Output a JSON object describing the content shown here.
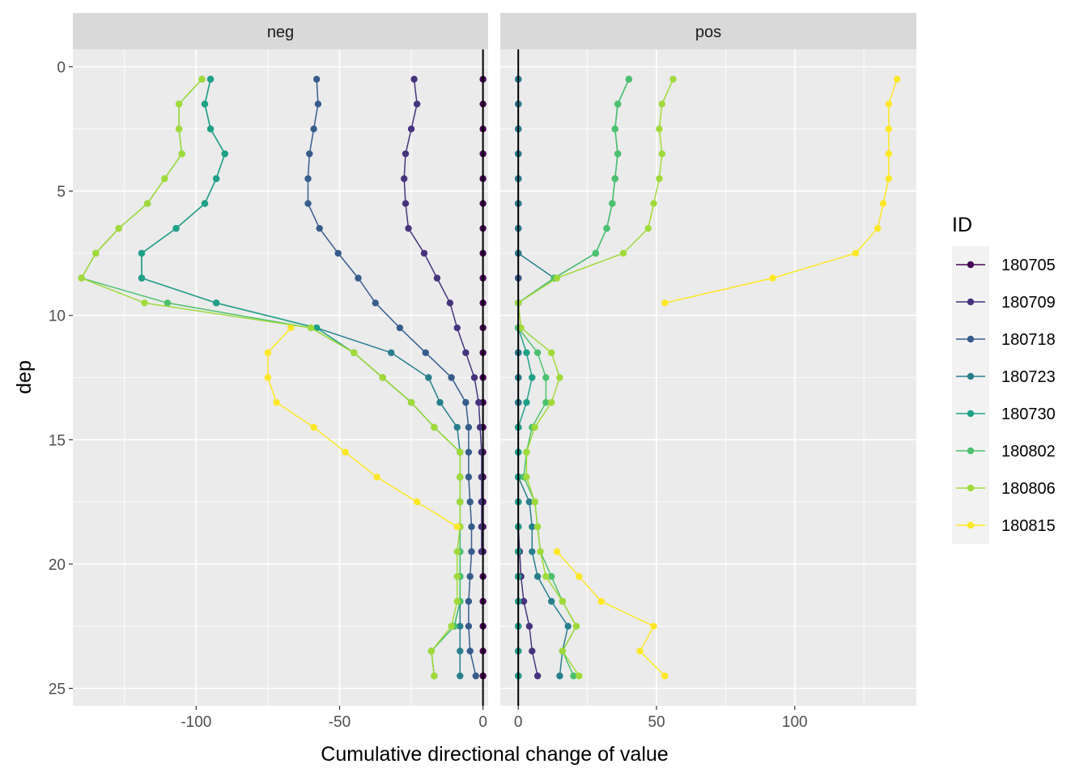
{
  "chart_data": {
    "type": "line",
    "facets": [
      "neg",
      "pos"
    ],
    "xlabel": "Cumulative directional change of value",
    "ylabel": "dep",
    "x_ticks": {
      "neg": [
        -100,
        -50,
        0
      ],
      "pos": [
        0,
        50,
        100
      ]
    },
    "y_ticks": [
      0,
      5,
      10,
      15,
      20,
      25
    ],
    "ylim": [
      -0.7,
      25.7
    ],
    "y_reversed": true,
    "xlim": {
      "neg": [
        -143,
        1.8
      ],
      "pos": [
        -6.5,
        144
      ]
    },
    "grid": true,
    "reference_line_x": 0,
    "legend": {
      "title": "ID",
      "position": "right"
    },
    "depths": [
      0.5,
      1.5,
      2.5,
      3.5,
      4.5,
      5.5,
      6.5,
      7.5,
      8.5,
      9.5,
      10.5,
      11.5,
      12.5,
      13.5,
      14.5,
      15.5,
      16.5,
      17.5,
      18.5,
      19.5,
      20.5,
      21.5,
      22.5,
      23.5,
      24.5
    ],
    "series": [
      {
        "name": "180705",
        "color": "#440154",
        "neg": [
          0,
          0,
          0,
          0,
          0,
          0,
          0,
          0,
          0,
          0,
          0,
          0,
          0,
          0,
          0,
          0,
          0,
          0,
          0,
          0,
          0,
          0,
          0,
          0,
          0
        ],
        "pos": [
          0,
          0,
          0,
          0,
          0,
          0,
          0,
          0,
          0,
          0,
          0,
          0,
          0,
          0,
          0,
          0,
          0,
          0,
          0,
          0,
          0,
          0,
          0,
          0,
          0
        ]
      },
      {
        "name": "180709",
        "color": "#46337E",
        "neg": [
          -24,
          -23,
          -25,
          -27,
          -27.5,
          -27,
          -26,
          -20.5,
          -16,
          -11.5,
          -9,
          -6,
          -3,
          -1.5,
          -1,
          -0.5,
          -0.5,
          -0.5,
          -0.5,
          -0.5,
          null,
          null,
          null,
          null,
          null
        ],
        "pos": [
          0,
          0,
          0,
          0,
          0,
          0,
          0,
          0,
          0,
          0,
          0,
          0,
          0,
          0,
          0,
          0,
          0,
          0,
          0,
          0.5,
          1,
          2,
          4,
          5,
          7
        ]
      },
      {
        "name": "180718",
        "color": "#365C8D",
        "neg": [
          -58,
          -57.5,
          -59,
          -60.5,
          -61,
          -61,
          -57,
          -50.5,
          -43.5,
          -37.5,
          -29,
          -20,
          -11,
          -6,
          -5,
          -5,
          -5,
          -4.5,
          -4,
          -4,
          -4.5,
          -5,
          -5,
          -4.5,
          -2.5
        ],
        "pos": [
          0,
          0,
          0,
          0,
          0,
          0,
          0,
          0,
          0,
          0,
          0,
          0,
          0,
          0,
          0,
          0,
          0,
          0,
          0,
          0,
          0,
          0,
          0,
          0,
          0
        ]
      },
      {
        "name": "180723",
        "color": "#277F8E",
        "neg": [
          -95,
          -97,
          -95,
          -90,
          -93,
          -97,
          -107,
          -119,
          -119,
          -93,
          -58,
          -32,
          -19,
          -15,
          -9,
          -8,
          -8,
          -8,
          -8,
          -8,
          -8,
          -8,
          -8,
          -8,
          -8
        ],
        "pos": [
          0,
          0,
          0,
          0,
          0,
          0,
          0,
          0,
          13,
          0,
          0,
          0,
          0,
          0,
          0,
          0,
          0,
          4,
          5,
          5,
          7,
          12,
          18,
          16,
          15
        ]
      },
      {
        "name": "180730",
        "color": "#1FA187",
        "neg": [
          -95,
          -97,
          -95,
          -90,
          -93,
          -97,
          -107,
          -119,
          -119,
          -93,
          -58,
          -45,
          -35,
          -25,
          -17,
          -8,
          -8,
          -8,
          -8,
          -8,
          -8,
          -8,
          -10,
          -18,
          -17
        ],
        "pos": [
          40,
          36,
          35,
          36,
          35,
          34,
          32,
          28,
          13,
          0,
          0,
          3,
          5,
          3,
          0,
          0,
          0,
          0,
          0,
          0,
          0,
          0,
          0,
          0,
          0
        ]
      },
      {
        "name": "180802",
        "color": "#4AC16D",
        "neg": [
          -98,
          -106,
          -106,
          -105,
          -111,
          -117,
          -127,
          -135,
          -140,
          -110,
          -60,
          -45,
          -35,
          -25,
          -17,
          -8,
          -8,
          -8,
          -8,
          -8,
          -8,
          -8,
          -10,
          -18,
          -17
        ],
        "pos": [
          40,
          36,
          35,
          36,
          35,
          34,
          32,
          28,
          13,
          0,
          0,
          7,
          10,
          10,
          5,
          3,
          2,
          6,
          7,
          8,
          12,
          16,
          21,
          16,
          20
        ]
      },
      {
        "name": "180806",
        "color": "#A0DA39",
        "neg": [
          -98,
          -106,
          -106,
          -105,
          -111,
          -117,
          -127,
          -135,
          -140,
          -118,
          -60,
          -45,
          -35,
          -25,
          -17,
          -8,
          -8,
          -8,
          -8,
          -9,
          -9,
          -9,
          -11,
          -18,
          -17
        ],
        "pos": [
          56,
          52,
          51,
          52,
          51,
          49,
          47,
          38,
          14,
          0,
          1,
          12,
          15,
          12,
          6,
          3,
          3,
          6,
          7,
          8,
          10,
          16,
          21,
          16,
          22
        ]
      },
      {
        "name": "180815",
        "color": "#FDE725",
        "neg": [
          null,
          null,
          null,
          null,
          null,
          null,
          null,
          null,
          null,
          null,
          -67,
          -75,
          -75,
          -72,
          -59,
          -48,
          -37,
          -23,
          -9,
          null,
          null,
          null,
          null,
          null,
          null
        ],
        "pos": [
          137,
          134,
          134,
          134,
          134,
          132,
          130,
          122,
          92,
          53,
          null,
          null,
          null,
          null,
          null,
          null,
          null,
          null,
          null,
          14,
          22,
          30,
          49,
          44,
          53
        ]
      }
    ]
  }
}
